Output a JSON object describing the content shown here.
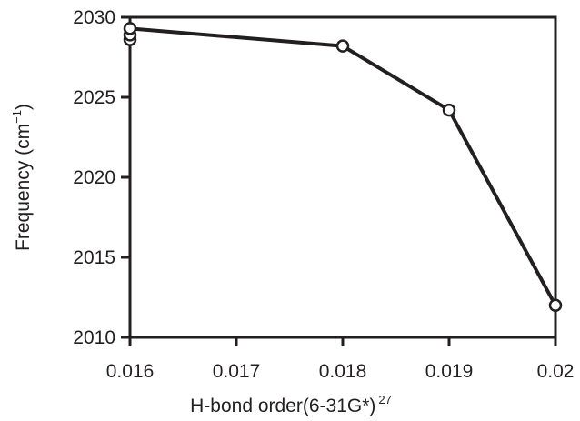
{
  "chart_data": {
    "type": "line",
    "title": "",
    "xlabel": "H-bond order(6-31G*)",
    "xlabel_superscript": "27",
    "ylabel_main": "Frequency (cm",
    "ylabel_exponent": "−1",
    "ylabel_close": ")",
    "xlim": [
      0.016,
      0.02
    ],
    "ylim": [
      2010,
      2030
    ],
    "x_ticks": [
      0.016,
      0.017,
      0.018,
      0.019,
      0.02
    ],
    "x_tick_labels": [
      "0.016",
      "0.017",
      "0.018",
      "0.019",
      "0.02"
    ],
    "y_ticks": [
      2010,
      2015,
      2020,
      2025,
      2030
    ],
    "y_tick_labels": [
      "2010",
      "2015",
      "2020",
      "2025",
      "2030"
    ],
    "grid": false,
    "series": [
      {
        "x": [
          0.016,
          0.016,
          0.016,
          0.018,
          0.019,
          0.02
        ],
        "y": [
          2028.6,
          2028.9,
          2029.3,
          2028.2,
          2024.2,
          2012.0
        ]
      }
    ],
    "colors": {
      "line": "#231f20",
      "marker_fill": "#ffffff",
      "frame": "#231f20"
    }
  }
}
